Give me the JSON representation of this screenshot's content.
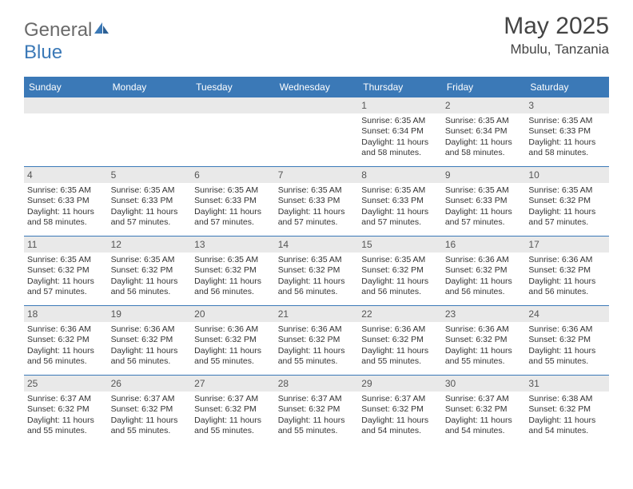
{
  "brand": {
    "part1": "General",
    "part2": "Blue"
  },
  "title": "May 2025",
  "location": "Mbulu, Tanzania",
  "colors": {
    "accent": "#3b79b7",
    "header_row_bg": "#e9e9e9",
    "text": "#333333",
    "logo_gray": "#6a6a6a"
  },
  "day_labels": [
    "Sunday",
    "Monday",
    "Tuesday",
    "Wednesday",
    "Thursday",
    "Friday",
    "Saturday"
  ],
  "weeks": [
    [
      {
        "n": "",
        "sr": "",
        "ss": "",
        "dl": ""
      },
      {
        "n": "",
        "sr": "",
        "ss": "",
        "dl": ""
      },
      {
        "n": "",
        "sr": "",
        "ss": "",
        "dl": ""
      },
      {
        "n": "",
        "sr": "",
        "ss": "",
        "dl": ""
      },
      {
        "n": "1",
        "sr": "Sunrise: 6:35 AM",
        "ss": "Sunset: 6:34 PM",
        "dl": "Daylight: 11 hours and 58 minutes."
      },
      {
        "n": "2",
        "sr": "Sunrise: 6:35 AM",
        "ss": "Sunset: 6:34 PM",
        "dl": "Daylight: 11 hours and 58 minutes."
      },
      {
        "n": "3",
        "sr": "Sunrise: 6:35 AM",
        "ss": "Sunset: 6:33 PM",
        "dl": "Daylight: 11 hours and 58 minutes."
      }
    ],
    [
      {
        "n": "4",
        "sr": "Sunrise: 6:35 AM",
        "ss": "Sunset: 6:33 PM",
        "dl": "Daylight: 11 hours and 58 minutes."
      },
      {
        "n": "5",
        "sr": "Sunrise: 6:35 AM",
        "ss": "Sunset: 6:33 PM",
        "dl": "Daylight: 11 hours and 57 minutes."
      },
      {
        "n": "6",
        "sr": "Sunrise: 6:35 AM",
        "ss": "Sunset: 6:33 PM",
        "dl": "Daylight: 11 hours and 57 minutes."
      },
      {
        "n": "7",
        "sr": "Sunrise: 6:35 AM",
        "ss": "Sunset: 6:33 PM",
        "dl": "Daylight: 11 hours and 57 minutes."
      },
      {
        "n": "8",
        "sr": "Sunrise: 6:35 AM",
        "ss": "Sunset: 6:33 PM",
        "dl": "Daylight: 11 hours and 57 minutes."
      },
      {
        "n": "9",
        "sr": "Sunrise: 6:35 AM",
        "ss": "Sunset: 6:33 PM",
        "dl": "Daylight: 11 hours and 57 minutes."
      },
      {
        "n": "10",
        "sr": "Sunrise: 6:35 AM",
        "ss": "Sunset: 6:32 PM",
        "dl": "Daylight: 11 hours and 57 minutes."
      }
    ],
    [
      {
        "n": "11",
        "sr": "Sunrise: 6:35 AM",
        "ss": "Sunset: 6:32 PM",
        "dl": "Daylight: 11 hours and 57 minutes."
      },
      {
        "n": "12",
        "sr": "Sunrise: 6:35 AM",
        "ss": "Sunset: 6:32 PM",
        "dl": "Daylight: 11 hours and 56 minutes."
      },
      {
        "n": "13",
        "sr": "Sunrise: 6:35 AM",
        "ss": "Sunset: 6:32 PM",
        "dl": "Daylight: 11 hours and 56 minutes."
      },
      {
        "n": "14",
        "sr": "Sunrise: 6:35 AM",
        "ss": "Sunset: 6:32 PM",
        "dl": "Daylight: 11 hours and 56 minutes."
      },
      {
        "n": "15",
        "sr": "Sunrise: 6:35 AM",
        "ss": "Sunset: 6:32 PM",
        "dl": "Daylight: 11 hours and 56 minutes."
      },
      {
        "n": "16",
        "sr": "Sunrise: 6:36 AM",
        "ss": "Sunset: 6:32 PM",
        "dl": "Daylight: 11 hours and 56 minutes."
      },
      {
        "n": "17",
        "sr": "Sunrise: 6:36 AM",
        "ss": "Sunset: 6:32 PM",
        "dl": "Daylight: 11 hours and 56 minutes."
      }
    ],
    [
      {
        "n": "18",
        "sr": "Sunrise: 6:36 AM",
        "ss": "Sunset: 6:32 PM",
        "dl": "Daylight: 11 hours and 56 minutes."
      },
      {
        "n": "19",
        "sr": "Sunrise: 6:36 AM",
        "ss": "Sunset: 6:32 PM",
        "dl": "Daylight: 11 hours and 56 minutes."
      },
      {
        "n": "20",
        "sr": "Sunrise: 6:36 AM",
        "ss": "Sunset: 6:32 PM",
        "dl": "Daylight: 11 hours and 55 minutes."
      },
      {
        "n": "21",
        "sr": "Sunrise: 6:36 AM",
        "ss": "Sunset: 6:32 PM",
        "dl": "Daylight: 11 hours and 55 minutes."
      },
      {
        "n": "22",
        "sr": "Sunrise: 6:36 AM",
        "ss": "Sunset: 6:32 PM",
        "dl": "Daylight: 11 hours and 55 minutes."
      },
      {
        "n": "23",
        "sr": "Sunrise: 6:36 AM",
        "ss": "Sunset: 6:32 PM",
        "dl": "Daylight: 11 hours and 55 minutes."
      },
      {
        "n": "24",
        "sr": "Sunrise: 6:36 AM",
        "ss": "Sunset: 6:32 PM",
        "dl": "Daylight: 11 hours and 55 minutes."
      }
    ],
    [
      {
        "n": "25",
        "sr": "Sunrise: 6:37 AM",
        "ss": "Sunset: 6:32 PM",
        "dl": "Daylight: 11 hours and 55 minutes."
      },
      {
        "n": "26",
        "sr": "Sunrise: 6:37 AM",
        "ss": "Sunset: 6:32 PM",
        "dl": "Daylight: 11 hours and 55 minutes."
      },
      {
        "n": "27",
        "sr": "Sunrise: 6:37 AM",
        "ss": "Sunset: 6:32 PM",
        "dl": "Daylight: 11 hours and 55 minutes."
      },
      {
        "n": "28",
        "sr": "Sunrise: 6:37 AM",
        "ss": "Sunset: 6:32 PM",
        "dl": "Daylight: 11 hours and 55 minutes."
      },
      {
        "n": "29",
        "sr": "Sunrise: 6:37 AM",
        "ss": "Sunset: 6:32 PM",
        "dl": "Daylight: 11 hours and 54 minutes."
      },
      {
        "n": "30",
        "sr": "Sunrise: 6:37 AM",
        "ss": "Sunset: 6:32 PM",
        "dl": "Daylight: 11 hours and 54 minutes."
      },
      {
        "n": "31",
        "sr": "Sunrise: 6:38 AM",
        "ss": "Sunset: 6:32 PM",
        "dl": "Daylight: 11 hours and 54 minutes."
      }
    ]
  ]
}
